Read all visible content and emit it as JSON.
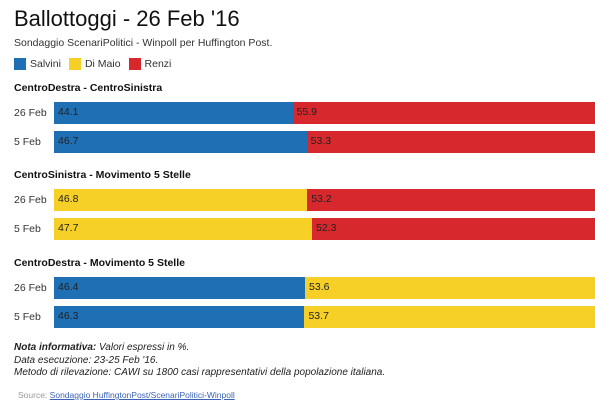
{
  "title": "Ballottoggi - 26 Feb '16",
  "subtitle": "Sondaggio ScenariPolitici - Winpoll per Huffington Post.",
  "legend": [
    {
      "name": "Salvini",
      "color": "#1f6fb4"
    },
    {
      "name": "Di Maio",
      "color": "#f6d026"
    },
    {
      "name": "Renzi",
      "color": "#d7282d"
    }
  ],
  "chart_data": {
    "type": "bar",
    "stacked": true,
    "orientation": "horizontal",
    "groups": [
      {
        "title": "CentroDestra - CentroSinistra",
        "rows": [
          {
            "label": "26 Feb",
            "segments": [
              {
                "series": "Salvini",
                "value": 44.1,
                "label": "44.1"
              },
              {
                "series": "Renzi",
                "value": 55.9,
                "label": "55.9"
              }
            ]
          },
          {
            "label": "5 Feb",
            "segments": [
              {
                "series": "Salvini",
                "value": 46.7,
                "label": "46.7"
              },
              {
                "series": "Renzi",
                "value": 53.3,
                "label": "53.3"
              }
            ]
          }
        ]
      },
      {
        "title": "CentroSinistra - Movimento 5 Stelle",
        "rows": [
          {
            "label": "26 Feb",
            "segments": [
              {
                "series": "Di Maio",
                "value": 46.8,
                "label": "46.8"
              },
              {
                "series": "Renzi",
                "value": 53.2,
                "label": "53.2"
              }
            ]
          },
          {
            "label": "5 Feb",
            "segments": [
              {
                "series": "Di Maio",
                "value": 47.7,
                "label": "47.7"
              },
              {
                "series": "Renzi",
                "value": 52.3,
                "label": "52.3"
              }
            ]
          }
        ]
      },
      {
        "title": "CentroDestra - Movimento 5 Stelle",
        "rows": [
          {
            "label": "26 Feb",
            "segments": [
              {
                "series": "Salvini",
                "value": 46.4,
                "label": "46.4"
              },
              {
                "series": "Di Maio",
                "value": 53.6,
                "label": "53.6"
              }
            ]
          },
          {
            "label": "5 Feb",
            "segments": [
              {
                "series": "Salvini",
                "value": 46.3,
                "label": "46.3"
              },
              {
                "series": "Di Maio",
                "value": 53.7,
                "label": "53.7"
              }
            ]
          }
        ]
      }
    ]
  },
  "notes": {
    "heading": "Nota informativa:",
    "line1": " Valori espressi in %.",
    "line2": "Data esecuzione: 23-25 Feb '16.",
    "line3": "Metodo di rilevazione: CAWI su 1800 casi rappresentativi della popolazione italiana."
  },
  "source": {
    "label": "Source:",
    "link": "Sondaggio HuffingtonPost/ScenariPolitici-Winpoll"
  }
}
